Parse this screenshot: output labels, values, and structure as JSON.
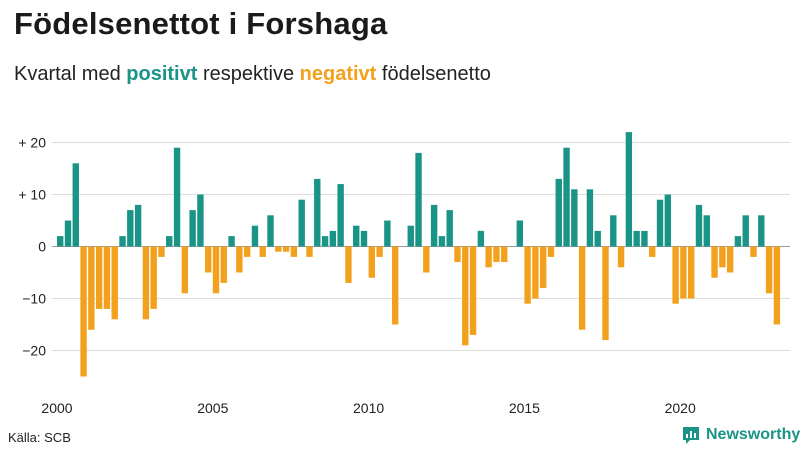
{
  "title": "Födelsenettot i Forshaga",
  "subtitle": {
    "prefix": "Kvartal med ",
    "positive": "positivt",
    "middle": " respektive ",
    "negative": "negativt",
    "suffix": " födelsenetto"
  },
  "source": "Källa: SCB",
  "brand": "Newsworthy",
  "colors": {
    "positive": "#1a9486",
    "negative": "#f3a11d",
    "grid": "#dddddd"
  },
  "chart_data": {
    "type": "bar",
    "title": "Födelsenettot i Forshaga",
    "x_start": "2000 Q1",
    "frequency": "quarterly",
    "x_ticks": [
      "2000",
      "2005",
      "2010",
      "2015",
      "2020"
    ],
    "y_ticks": [
      "+ 20",
      "+ 10",
      "0",
      "−10",
      "−20"
    ],
    "y_tick_values": [
      20,
      10,
      0,
      -10,
      -20
    ],
    "ylim": [
      -27,
      24
    ],
    "grid": true,
    "values": [
      2,
      5,
      16,
      -25,
      -16,
      -12,
      -12,
      -14,
      2,
      7,
      8,
      -14,
      -12,
      -2,
      2,
      19,
      -9,
      7,
      10,
      -5,
      -9,
      -7,
      2,
      -5,
      -2,
      4,
      -2,
      6,
      -1,
      -1,
      -2,
      9,
      -2,
      13,
      2,
      3,
      12,
      -7,
      4,
      3,
      -6,
      -2,
      5,
      -15,
      0,
      4,
      18,
      -5,
      8,
      2,
      7,
      -3,
      -19,
      -17,
      3,
      -4,
      -3,
      -3,
      0,
      5,
      -11,
      -10,
      -8,
      -2,
      13,
      19,
      11,
      -16,
      11,
      3,
      -18,
      6,
      -4,
      22,
      3,
      3,
      -2,
      9,
      10,
      -11,
      -10,
      -10,
      8,
      6,
      -6,
      -4,
      -5,
      2,
      6,
      -2,
      6,
      -9,
      -15
    ]
  }
}
